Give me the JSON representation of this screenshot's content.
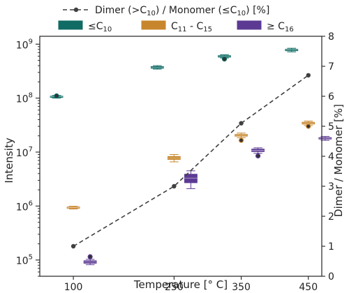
{
  "chart_data": {
    "type": "box",
    "xlabel": "Temperature [° C]",
    "ylabel_left": "Intensity",
    "ylabel_right": "Dimer / Monomer [%]",
    "x_ticks": [
      100,
      250,
      350,
      450
    ],
    "xlim": [
      50,
      470
    ],
    "left_axis": {
      "scale": "log",
      "ylim": [
        50000,
        1400000000
      ],
      "ticks": [
        {
          "value": 100000,
          "base": "10",
          "exp": "5"
        },
        {
          "value": 1000000,
          "base": "10",
          "exp": "6"
        },
        {
          "value": 10000000,
          "base": "10",
          "exp": "7"
        },
        {
          "value": 100000000,
          "base": "10",
          "exp": "8"
        },
        {
          "value": 1000000000,
          "base": "10",
          "exp": "9"
        }
      ]
    },
    "right_axis": {
      "scale": "linear",
      "ylim": [
        0,
        8
      ],
      "ticks": [
        0,
        1,
        2,
        3,
        4,
        5,
        6,
        7,
        8
      ]
    },
    "ratio_series": {
      "legend": {
        "prefix": "Dimer (>C",
        "sub1": "10",
        "mid": ") / Monomer (≤C",
        "sub2": "10",
        "suffix": ") [%]"
      },
      "color": "#404040",
      "points": [
        {
          "temperature": 100,
          "percent": 1.0
        },
        {
          "temperature": 250,
          "percent": 3.0
        },
        {
          "temperature": 350,
          "percent": 5.1
        },
        {
          "temperature": 450,
          "percent": 6.7
        }
      ]
    },
    "box_groups": [
      {
        "legend": {
          "main": "≤C",
          "sub": "10",
          "suffix": ""
        },
        "color": "#0f6b64",
        "temperature_offset": -25,
        "boxes": [
          {
            "temperature": 100,
            "whislo": 100000000,
            "q1": 103000000,
            "med": 106000000,
            "q3": 109000000,
            "whishi": 112000000,
            "fliers": [
              110000000
            ]
          },
          {
            "temperature": 250,
            "whislo": 345000000,
            "q1": 358000000,
            "med": 372000000,
            "q3": 385000000,
            "whishi": 400000000,
            "fliers": []
          },
          {
            "temperature": 350,
            "whislo": 555000000,
            "q1": 575000000,
            "med": 595000000,
            "q3": 615000000,
            "whishi": 635000000,
            "fliers": [
              530000000
            ]
          },
          {
            "temperature": 450,
            "whislo": 720000000,
            "q1": 755000000,
            "med": 780000000,
            "q3": 805000000,
            "whishi": 840000000,
            "fliers": []
          }
        ]
      },
      {
        "legend": {
          "main": "C",
          "sub": "11",
          "suffix": " - C",
          "sub2": "15"
        },
        "color": "#c8862c",
        "temperature_offset": 0,
        "boxes": [
          {
            "temperature": 100,
            "whislo": 880000,
            "q1": 910000,
            "med": 940000,
            "q3": 965000,
            "whishi": 990000,
            "fliers": []
          },
          {
            "temperature": 250,
            "whislo": 6600000,
            "q1": 7300000,
            "med": 7800000,
            "q3": 8300000,
            "whishi": 9000000,
            "fliers": []
          },
          {
            "temperature": 350,
            "whislo": 18500000,
            "q1": 19700000,
            "med": 20500000,
            "q3": 21300000,
            "whishi": 22500000,
            "fliers": [
              16500000
            ]
          },
          {
            "temperature": 450,
            "whislo": 31000000,
            "q1": 33000000,
            "med": 34500000,
            "q3": 35800000,
            "whishi": 37500000,
            "fliers": [
              30000000
            ]
          }
        ]
      },
      {
        "legend": {
          "main": "≥ C",
          "sub": "16",
          "suffix": ""
        },
        "color": "#5c3a93",
        "temperature_offset": 25,
        "boxes": [
          {
            "temperature": 100,
            "whislo": 82000,
            "q1": 87000,
            "med": 92000,
            "q3": 97000,
            "whishi": 103000,
            "fliers": [
              115000
            ]
          },
          {
            "temperature": 250,
            "whislo": 2100000,
            "q1": 2700000,
            "med": 3300000,
            "q3": 3900000,
            "whishi": 4500000,
            "fliers": []
          },
          {
            "temperature": 350,
            "whislo": 9500000,
            "q1": 10200000,
            "med": 10800000,
            "q3": 11400000,
            "whishi": 12000000,
            "fliers": [
              8500000
            ]
          },
          {
            "temperature": 450,
            "whislo": 16500000,
            "q1": 17400000,
            "med": 18000000,
            "q3": 18600000,
            "whishi": 19500000,
            "fliers": []
          }
        ]
      }
    ]
  }
}
